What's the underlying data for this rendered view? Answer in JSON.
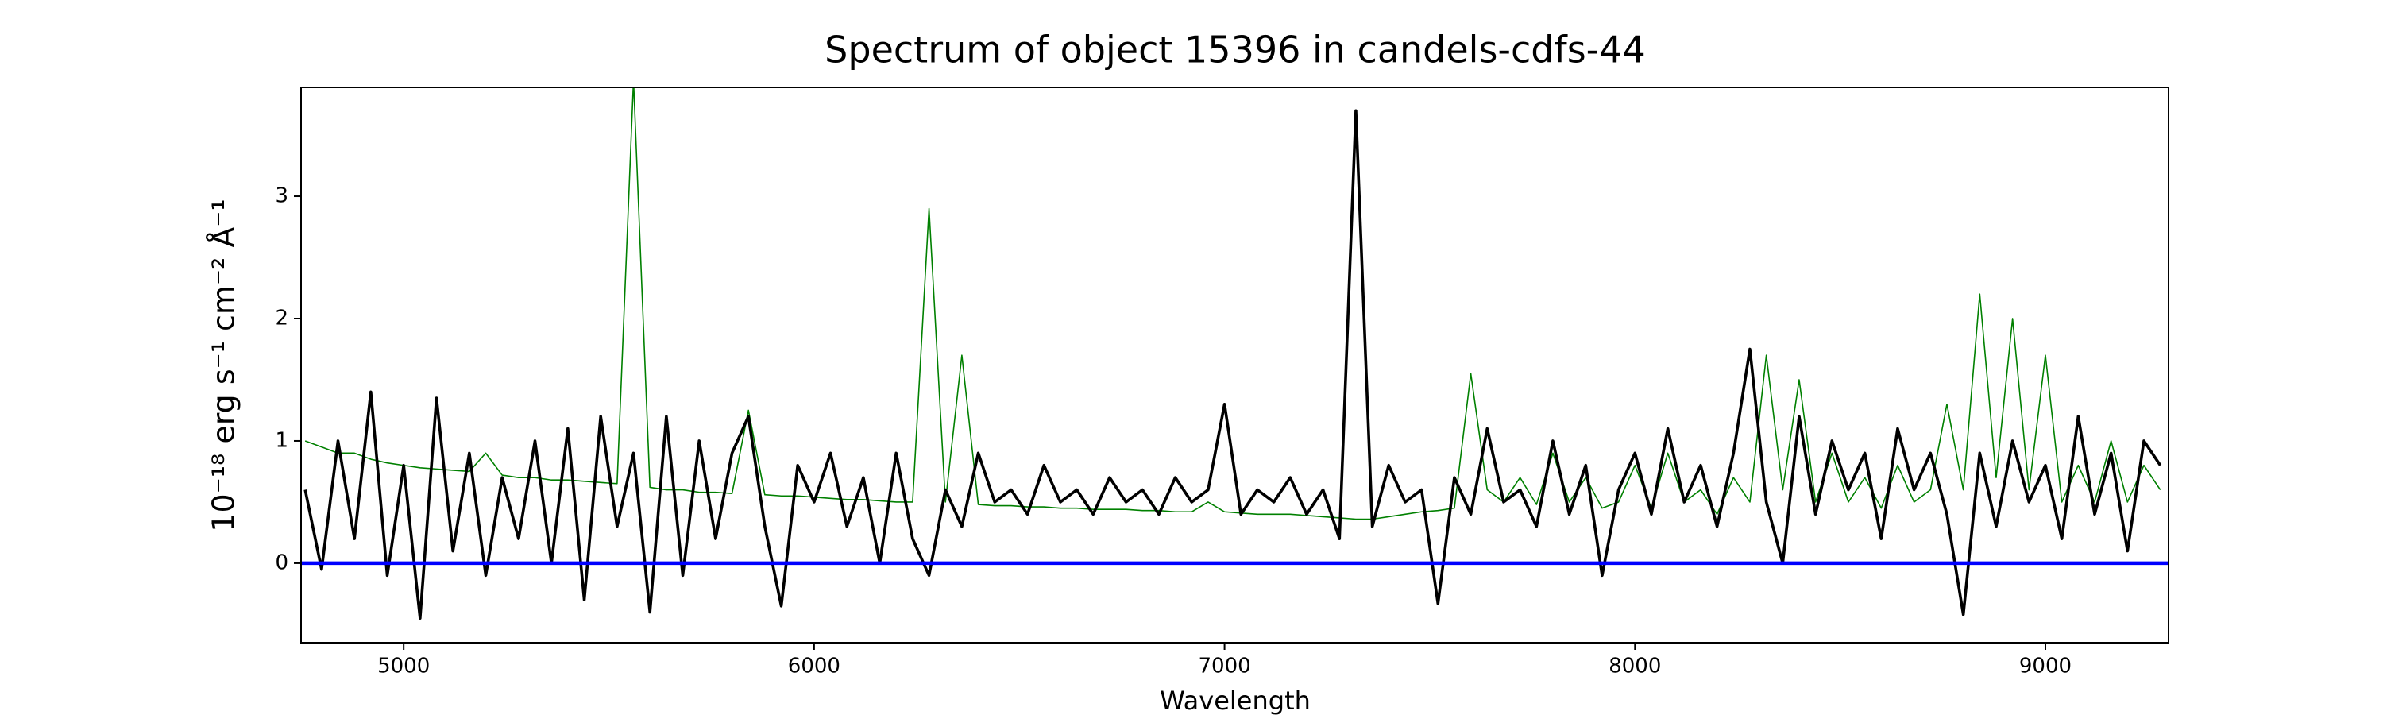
{
  "chart_data": {
    "type": "line",
    "title": "Spectrum of object 15396 in candels-cdfs-44",
    "x_label": "Wavelength",
    "y_label": "10⁻¹⁸ erg s⁻¹ cm⁻² Å⁻¹",
    "x": [
      4760,
      4800,
      4840,
      4880,
      4920,
      4960,
      5000,
      5040,
      5080,
      5120,
      5160,
      5200,
      5240,
      5280,
      5320,
      5360,
      5400,
      5440,
      5480,
      5520,
      5560,
      5600,
      5640,
      5680,
      5720,
      5760,
      5800,
      5840,
      5880,
      5920,
      5960,
      6000,
      6040,
      6080,
      6120,
      6160,
      6200,
      6240,
      6280,
      6320,
      6360,
      6400,
      6440,
      6480,
      6520,
      6560,
      6600,
      6640,
      6680,
      6720,
      6760,
      6800,
      6840,
      6880,
      6920,
      6960,
      7000,
      7040,
      7080,
      7120,
      7160,
      7200,
      7240,
      7280,
      7320,
      7360,
      7400,
      7440,
      7480,
      7520,
      7560,
      7600,
      7640,
      7680,
      7720,
      7760,
      7800,
      7840,
      7880,
      7920,
      7960,
      8000,
      8040,
      8080,
      8120,
      8160,
      8200,
      8240,
      8280,
      8320,
      8360,
      8400,
      8440,
      8480,
      8520,
      8560,
      8600,
      8640,
      8680,
      8720,
      8760,
      8800,
      8840,
      8880,
      8920,
      8960,
      9000,
      9040,
      9080,
      9120,
      9160,
      9200,
      9240,
      9280
    ],
    "series": [
      {
        "color": "#008000",
        "values": [
          1.0,
          0.95,
          0.9,
          0.9,
          0.85,
          0.82,
          0.8,
          0.78,
          0.77,
          0.76,
          0.75,
          0.9,
          0.72,
          0.7,
          0.7,
          0.68,
          0.68,
          0.67,
          0.66,
          0.65,
          3.95,
          0.62,
          0.6,
          0.6,
          0.58,
          0.58,
          0.57,
          1.25,
          0.56,
          0.55,
          0.55,
          0.54,
          0.53,
          0.52,
          0.52,
          0.51,
          0.5,
          0.5,
          2.9,
          0.5,
          1.7,
          0.48,
          0.47,
          0.47,
          0.46,
          0.46,
          0.45,
          0.45,
          0.44,
          0.44,
          0.44,
          0.43,
          0.43,
          0.42,
          0.42,
          0.5,
          0.42,
          0.41,
          0.4,
          0.4,
          0.4,
          0.39,
          0.38,
          0.37,
          0.36,
          0.36,
          0.38,
          0.4,
          0.42,
          0.43,
          0.45,
          1.55,
          0.6,
          0.5,
          0.7,
          0.48,
          0.9,
          0.5,
          0.7,
          0.45,
          0.5,
          0.8,
          0.45,
          0.9,
          0.5,
          0.6,
          0.4,
          0.7,
          0.5,
          1.7,
          0.6,
          1.5,
          0.5,
          0.9,
          0.5,
          0.7,
          0.45,
          0.8,
          0.5,
          0.6,
          1.3,
          0.6,
          2.2,
          0.7,
          2.0,
          0.6,
          1.7,
          0.5,
          0.8,
          0.5,
          1.0,
          0.5,
          0.8,
          0.6
        ]
      },
      {
        "color": "#000000",
        "values": [
          0.6,
          -0.05,
          1.0,
          0.2,
          1.4,
          -0.1,
          0.8,
          -0.45,
          1.35,
          0.1,
          0.9,
          -0.1,
          0.7,
          0.2,
          1.0,
          0.0,
          1.1,
          -0.3,
          1.2,
          0.3,
          0.9,
          -0.4,
          1.2,
          -0.1,
          1.0,
          0.2,
          0.9,
          1.2,
          0.3,
          -0.35,
          0.8,
          0.5,
          0.9,
          0.3,
          0.7,
          0.0,
          0.9,
          0.2,
          -0.1,
          0.6,
          0.3,
          0.9,
          0.5,
          0.6,
          0.4,
          0.8,
          0.5,
          0.6,
          0.4,
          0.7,
          0.5,
          0.6,
          0.4,
          0.7,
          0.5,
          0.6,
          1.3,
          0.4,
          0.6,
          0.5,
          0.7,
          0.4,
          0.6,
          0.2,
          3.7,
          0.3,
          0.8,
          0.5,
          0.6,
          -0.33,
          0.7,
          0.4,
          1.1,
          0.5,
          0.6,
          0.3,
          1.0,
          0.4,
          0.8,
          -0.1,
          0.6,
          0.9,
          0.4,
          1.1,
          0.5,
          0.8,
          0.3,
          0.9,
          1.75,
          0.5,
          0.0,
          1.2,
          0.4,
          1.0,
          0.6,
          0.9,
          0.2,
          1.1,
          0.6,
          0.9,
          0.4,
          -0.42,
          0.9,
          0.3,
          1.0,
          0.5,
          0.8,
          0.2,
          1.2,
          0.4,
          0.9,
          0.1,
          1.0,
          0.8
        ]
      }
    ],
    "hline": {
      "value": 0,
      "color": "#0000ff"
    },
    "xlim": [
      4750,
      9300
    ],
    "ylim": [
      -0.65,
      3.89
    ],
    "xticks": [
      5000,
      6000,
      7000,
      8000,
      9000
    ],
    "yticks": [
      0,
      1,
      2,
      3
    ]
  }
}
